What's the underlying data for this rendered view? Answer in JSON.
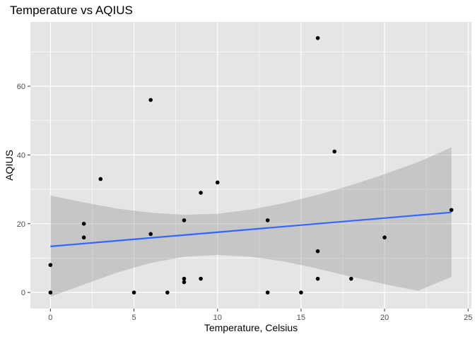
{
  "chart_data": {
    "type": "scatter",
    "title": "Temperature vs AQIUS",
    "xlabel": "Temperature, Celsius",
    "ylabel": "AQIUS",
    "xlim": [
      -1.2,
      25.2
    ],
    "ylim": [
      -4.7,
      78.7
    ],
    "xticks": [
      0,
      5,
      10,
      15,
      20,
      25
    ],
    "xtick_labels": [
      "0",
      "5",
      "10",
      "15",
      "20",
      "25"
    ],
    "yticks": [
      0,
      20,
      40,
      60
    ],
    "ytick_labels": [
      "0",
      "20",
      "40",
      "60"
    ],
    "grid": true,
    "background": "#e5e5e5",
    "point_color": "#000000",
    "points": [
      {
        "x": 0,
        "y": 8
      },
      {
        "x": 0,
        "y": 0
      },
      {
        "x": 2,
        "y": 20
      },
      {
        "x": 2,
        "y": 16
      },
      {
        "x": 3,
        "y": 33
      },
      {
        "x": 5,
        "y": 0
      },
      {
        "x": 6,
        "y": 56
      },
      {
        "x": 6,
        "y": 17
      },
      {
        "x": 7,
        "y": 0
      },
      {
        "x": 8,
        "y": 21
      },
      {
        "x": 8,
        "y": 4
      },
      {
        "x": 8,
        "y": 3
      },
      {
        "x": 9,
        "y": 29
      },
      {
        "x": 9,
        "y": 4
      },
      {
        "x": 10,
        "y": 32
      },
      {
        "x": 13,
        "y": 21
      },
      {
        "x": 13,
        "y": 0
      },
      {
        "x": 15,
        "y": 0
      },
      {
        "x": 16,
        "y": 74
      },
      {
        "x": 16,
        "y": 12
      },
      {
        "x": 16,
        "y": 4
      },
      {
        "x": 17,
        "y": 41
      },
      {
        "x": 18,
        "y": 4
      },
      {
        "x": 20,
        "y": 16
      },
      {
        "x": 24,
        "y": 24
      }
    ],
    "trend_line": {
      "method": "linear",
      "color": "#3366ff",
      "x": [
        0,
        24
      ],
      "y": [
        13.4,
        23.3
      ]
    },
    "confidence_band": {
      "color": "#999999",
      "x": [
        0,
        2,
        4,
        6,
        8,
        10,
        12,
        14,
        16,
        18,
        20,
        22,
        24
      ],
      "upper": [
        28.2,
        26.2,
        24.4,
        23.2,
        22.6,
        22.9,
        24.1,
        26.0,
        28.4,
        31.2,
        34.4,
        37.9,
        42.2
      ],
      "lower": [
        -1.2,
        2.3,
        5.8,
        8.6,
        10.4,
        10.9,
        10.4,
        9.0,
        6.9,
        4.6,
        2.4,
        0.5,
        4.5
      ]
    }
  }
}
